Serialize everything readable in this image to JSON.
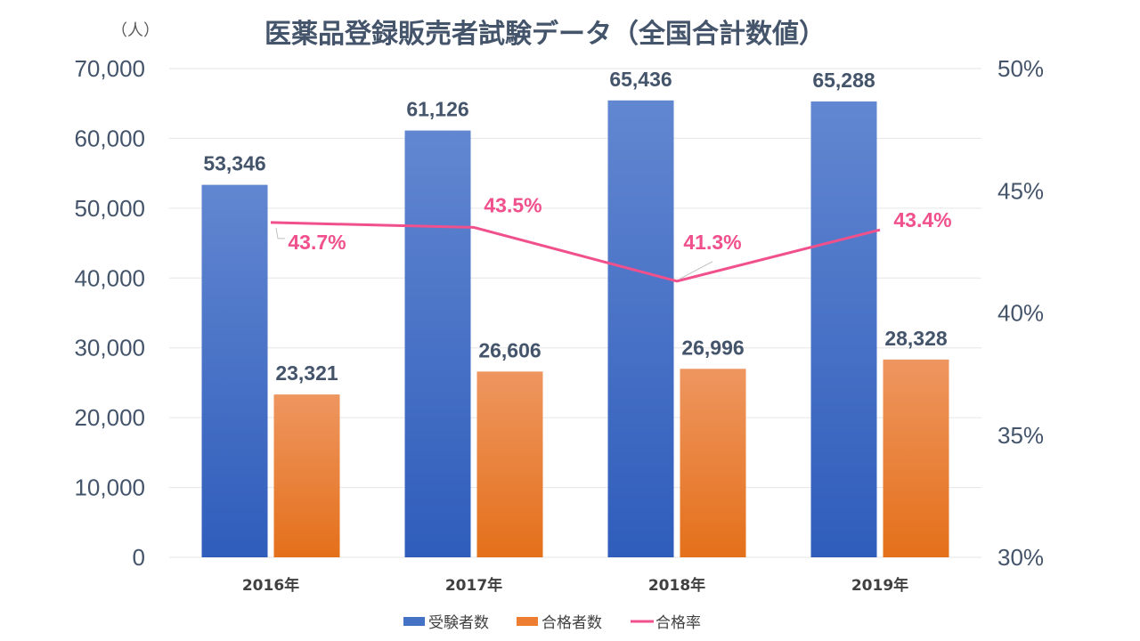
{
  "chart_data": {
    "type": "bar",
    "title": "医薬品登録販売者試験データ（全国合計数値）",
    "ylabel": "（人）",
    "categories": [
      "2016年",
      "2017年",
      "2018年",
      "2019年"
    ],
    "ylim": [
      0,
      70000
    ],
    "yticks": [
      "0",
      "10,000",
      "20,000",
      "30,000",
      "40,000",
      "50,000",
      "60,000",
      "70,000"
    ],
    "y2lim": [
      30,
      50
    ],
    "y2ticks": [
      "30%",
      "35%",
      "40%",
      "45%",
      "50%"
    ],
    "series": [
      {
        "name": "受験者数",
        "type": "bar",
        "color": "#4472C4",
        "values": [
          53346,
          61126,
          65436,
          65288
        ],
        "labels": [
          "53,346",
          "61,126",
          "65,436",
          "65,288"
        ]
      },
      {
        "name": "合格者数",
        "type": "bar",
        "color": "#ED7D31",
        "values": [
          23321,
          26606,
          26996,
          28328
        ],
        "labels": [
          "23,321",
          "26,606",
          "26,996",
          "28,328"
        ]
      },
      {
        "name": "合格率",
        "type": "line",
        "axis": "secondary",
        "color": "#F0508C",
        "values": [
          43.7,
          43.5,
          41.3,
          43.4
        ],
        "labels": [
          "43.7%",
          "43.5%",
          "41.3%",
          "43.4%"
        ]
      }
    ],
    "legend": "bottom"
  }
}
